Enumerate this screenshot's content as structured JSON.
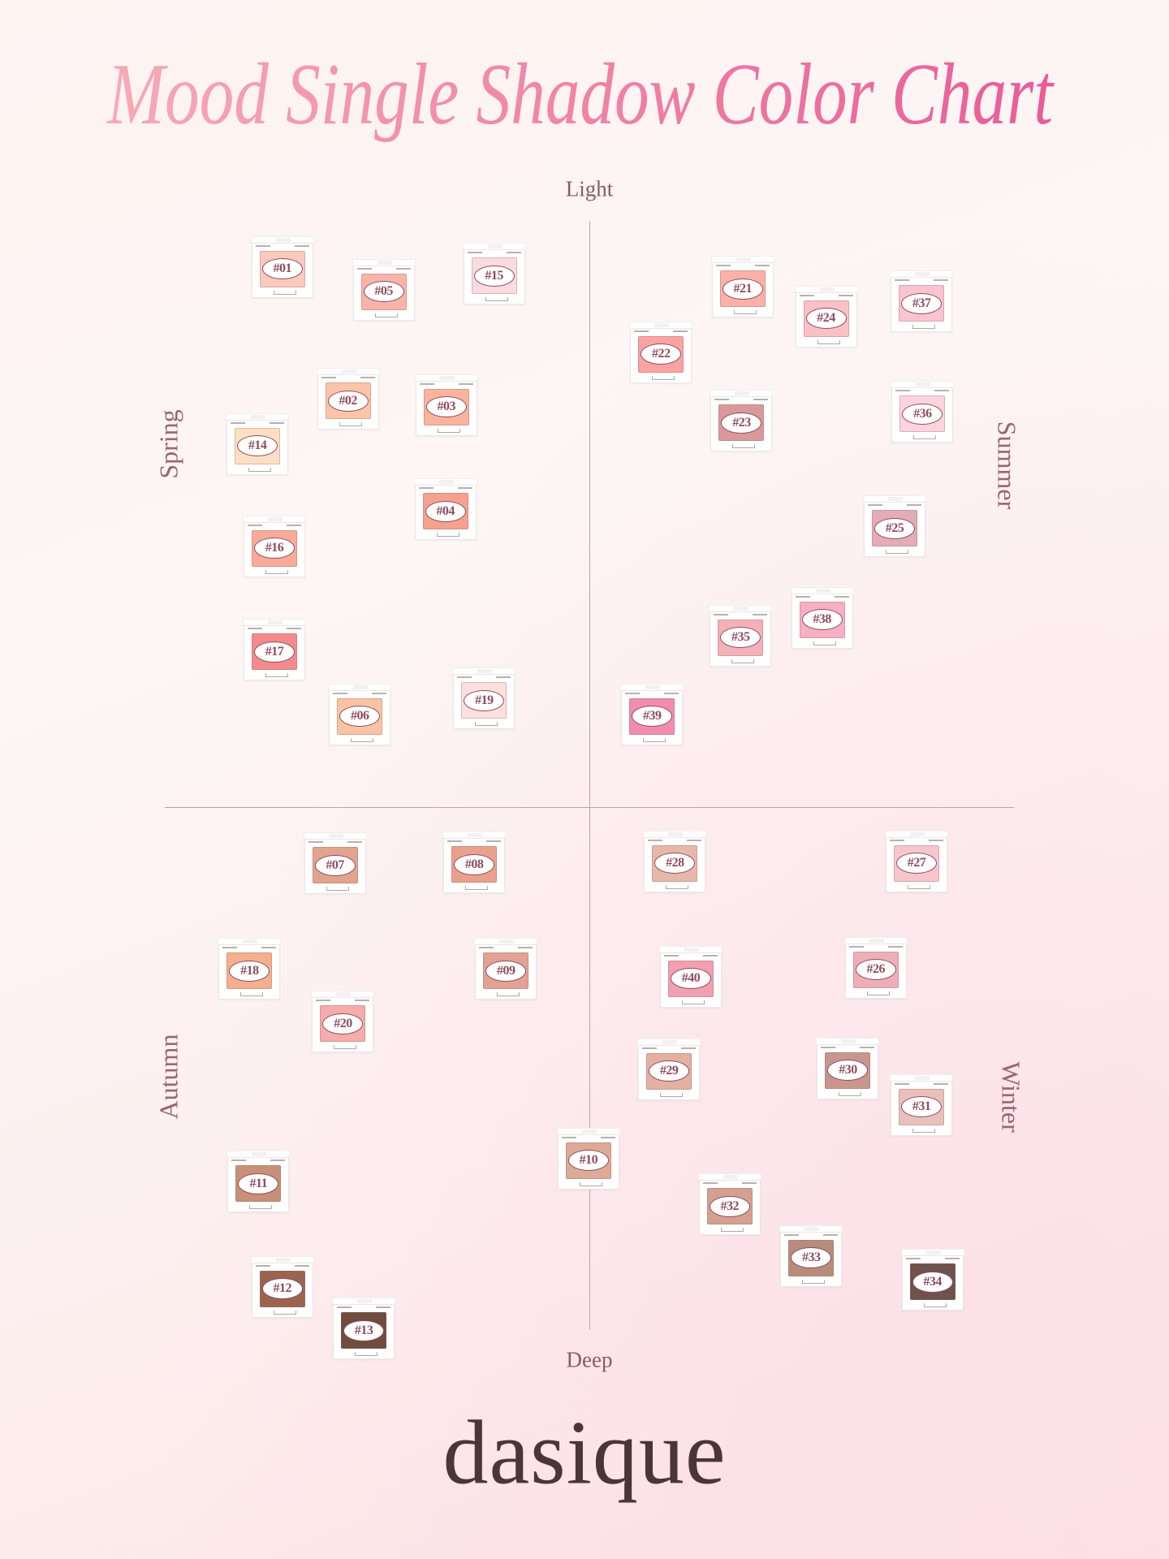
{
  "title": "Mood Single Shadow Color Chart",
  "title_colors": {
    "start": "#f7aab6",
    "end": "#e85c98"
  },
  "axes": {
    "top": "Light",
    "bottom": "Deep"
  },
  "seasons": {
    "top_left": "Spring",
    "top_right": "Summer",
    "bottom_left": "Autumn",
    "bottom_right": "Winter"
  },
  "brand": "dasique",
  "shades": [
    {
      "id": "#01",
      "quadrant": "Spring",
      "color": "#fcc9bd"
    },
    {
      "id": "#05",
      "quadrant": "Spring",
      "color": "#f8b4a8"
    },
    {
      "id": "#15",
      "quadrant": "Spring",
      "color": "#fbdbe0"
    },
    {
      "id": "#02",
      "quadrant": "Spring",
      "color": "#fcc4a8"
    },
    {
      "id": "#03",
      "quadrant": "Spring",
      "color": "#f9b39e"
    },
    {
      "id": "#14",
      "quadrant": "Spring",
      "color": "#fde0c4"
    },
    {
      "id": "#04",
      "quadrant": "Spring",
      "color": "#f6a08e"
    },
    {
      "id": "#16",
      "quadrant": "Spring",
      "color": "#f9aa9a"
    },
    {
      "id": "#17",
      "quadrant": "Spring",
      "color": "#f48a8c"
    },
    {
      "id": "#06",
      "quadrant": "Spring",
      "color": "#f8c4a4"
    },
    {
      "id": "#19",
      "quadrant": "Spring",
      "color": "#fde0dc"
    },
    {
      "id": "#21",
      "quadrant": "Summer",
      "color": "#fbb0a8"
    },
    {
      "id": "#24",
      "quadrant": "Summer",
      "color": "#f9c0c6"
    },
    {
      "id": "#37",
      "quadrant": "Summer",
      "color": "#f9c4d0"
    },
    {
      "id": "#22",
      "quadrant": "Summer",
      "color": "#fba3a3"
    },
    {
      "id": "#23",
      "quadrant": "Summer",
      "color": "#d9999c"
    },
    {
      "id": "#36",
      "quadrant": "Summer",
      "color": "#fbd4e0"
    },
    {
      "id": "#25",
      "quadrant": "Summer",
      "color": "#e3acb6"
    },
    {
      "id": "#38",
      "quadrant": "Summer",
      "color": "#f7afc4"
    },
    {
      "id": "#35",
      "quadrant": "Summer",
      "color": "#f3b2b8"
    },
    {
      "id": "#39",
      "quadrant": "Summer",
      "color": "#f28cae"
    },
    {
      "id": "#07",
      "quadrant": "Autumn",
      "color": "#e2a48e"
    },
    {
      "id": "#08",
      "quadrant": "Autumn",
      "color": "#eba08e"
    },
    {
      "id": "#18",
      "quadrant": "Autumn",
      "color": "#f4b08e"
    },
    {
      "id": "#09",
      "quadrant": "Autumn",
      "color": "#e2a294"
    },
    {
      "id": "#20",
      "quadrant": "Autumn",
      "color": "#f6acaa"
    },
    {
      "id": "#10",
      "quadrant": "Autumn",
      "color": "#dcaa96"
    },
    {
      "id": "#11",
      "quadrant": "Autumn",
      "color": "#c89078"
    },
    {
      "id": "#12",
      "quadrant": "Autumn",
      "color": "#9a6450"
    },
    {
      "id": "#13",
      "quadrant": "Autumn",
      "color": "#6e4c3e"
    },
    {
      "id": "#28",
      "quadrant": "Winter",
      "color": "#e6b8aa"
    },
    {
      "id": "#27",
      "quadrant": "Winter",
      "color": "#f6c6cc"
    },
    {
      "id": "#40",
      "quadrant": "Winter",
      "color": "#f0a0b0"
    },
    {
      "id": "#26",
      "quadrant": "Winter",
      "color": "#eeaeb8"
    },
    {
      "id": "#29",
      "quadrant": "Winter",
      "color": "#e4b0a0"
    },
    {
      "id": "#30",
      "quadrant": "Winter",
      "color": "#c8968e"
    },
    {
      "id": "#31",
      "quadrant": "Winter",
      "color": "#e8c0bc"
    },
    {
      "id": "#32",
      "quadrant": "Winter",
      "color": "#d4a090"
    },
    {
      "id": "#33",
      "quadrant": "Winter",
      "color": "#b68c7c"
    },
    {
      "id": "#34",
      "quadrant": "Winter",
      "color": "#6e524c"
    }
  ]
}
